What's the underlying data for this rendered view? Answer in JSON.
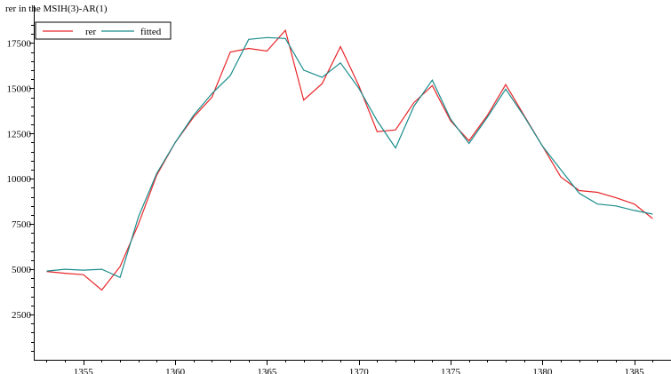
{
  "chart_data": {
    "type": "line",
    "title": "rer in the MSIH(3)-AR(1)",
    "xlabel": "",
    "ylabel": "",
    "xlim": [
      1352.3,
      1387.0
    ],
    "ylim": [
      0,
      18500
    ],
    "xticks": [
      1355,
      1360,
      1365,
      1370,
      1375,
      1380,
      1385
    ],
    "yticks": [
      2500,
      5000,
      7500,
      10000,
      12500,
      15000,
      17500
    ],
    "grid": false,
    "legend_position": "top-left",
    "x": [
      1353,
      1354,
      1355,
      1356,
      1357,
      1358,
      1359,
      1360,
      1361,
      1362,
      1363,
      1364,
      1365,
      1366,
      1367,
      1368,
      1369,
      1370,
      1371,
      1372,
      1373,
      1374,
      1375,
      1376,
      1377,
      1378,
      1379,
      1380,
      1381,
      1382,
      1383,
      1384,
      1385,
      1386
    ],
    "series": [
      {
        "name": "rer",
        "color": "#e8262a",
        "values": [
          4880,
          4780,
          4700,
          3850,
          5150,
          7500,
          10200,
          12000,
          13400,
          14500,
          17000,
          17200,
          17050,
          18200,
          14350,
          15250,
          17300,
          15150,
          12600,
          12700,
          14200,
          15150,
          13200,
          12100,
          13500,
          15200,
          13500,
          11800,
          10100,
          9350,
          9250,
          8950,
          8600,
          7800
        ]
      },
      {
        "name": "fitted",
        "color": "#1b8c8c",
        "values": [
          4900,
          5000,
          4950,
          5000,
          4550,
          7900,
          10300,
          12000,
          13500,
          14700,
          15700,
          17700,
          17800,
          17750,
          16000,
          15600,
          16400,
          15000,
          13200,
          11700,
          14000,
          15450,
          13300,
          11950,
          13400,
          14950,
          13450,
          11800,
          10500,
          9200,
          8600,
          8500,
          8250,
          8050
        ]
      }
    ]
  }
}
